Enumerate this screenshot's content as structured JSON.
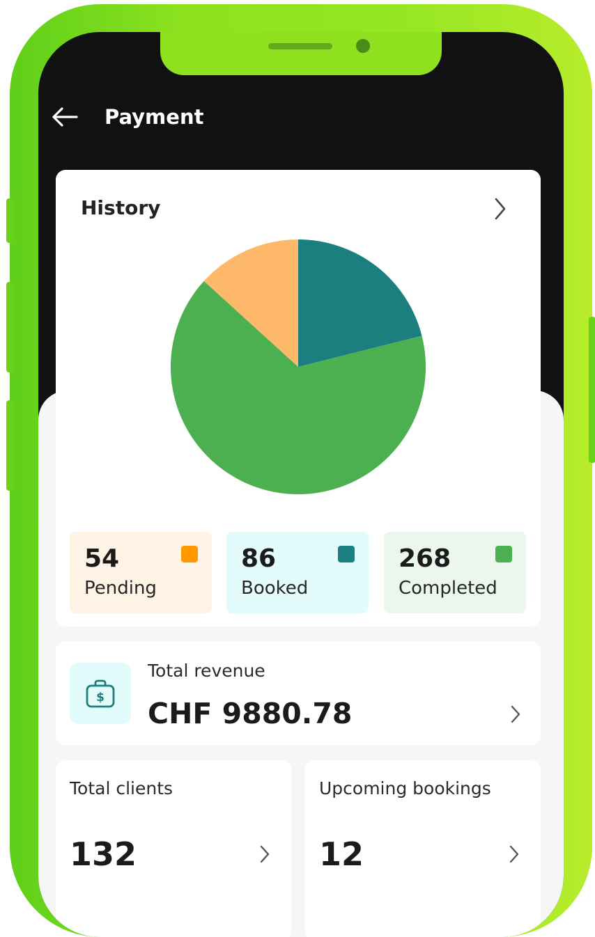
{
  "header": {
    "title": "Payment",
    "back_icon": "arrow-left-icon"
  },
  "history": {
    "title": "History",
    "chevron_icon": "chevron-right-icon",
    "stats": [
      {
        "value": "54",
        "label": "Pending",
        "color": "#ff9800",
        "bg": "#fff3e6"
      },
      {
        "value": "86",
        "label": "Booked",
        "color": "#1a7f7e",
        "bg": "#e4fbfc"
      },
      {
        "value": "268",
        "label": "Completed",
        "color": "#4caf50",
        "bg": "#ebf6ec"
      }
    ]
  },
  "chart_data": {
    "type": "pie",
    "slices": [
      {
        "label": "Booked",
        "value": 86,
        "color": "#1a7f7e"
      },
      {
        "label": "Completed",
        "value": 268,
        "color": "#4caf50"
      },
      {
        "label": "Pending",
        "value": 54,
        "color": "#fdb969"
      }
    ],
    "title": "History",
    "start": "top",
    "direction": "clockwise"
  },
  "revenue": {
    "label": "Total revenue",
    "value": "CHF 9880.78",
    "icon": "money-bag-icon"
  },
  "clients": {
    "label": "Total clients",
    "value": "132"
  },
  "bookings": {
    "label": "Upcoming bookings",
    "value": "12"
  },
  "colors": {
    "accent_green": "#8de21f",
    "dark": "#111111",
    "teal": "#1a7f7e"
  }
}
